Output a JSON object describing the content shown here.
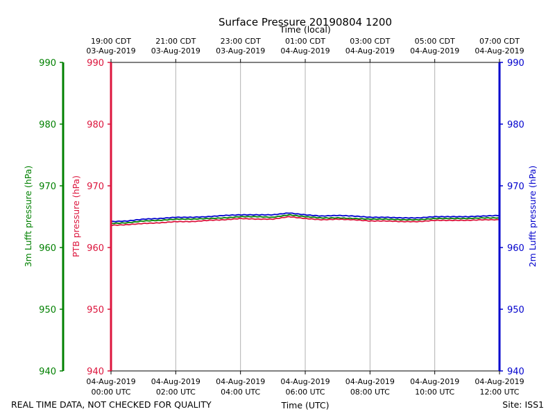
{
  "chart_data": {
    "type": "line",
    "title": "Surface Pressure 20190804 1200",
    "top_axis_label": "Time (local)",
    "x_label": "Time (UTC)",
    "left_outer_label": "3m Lufft pressure (hPa)",
    "left_inner_label": "PTB pressure (hPa)",
    "right_label": "2m Lufft pressure (hPa)",
    "footer_left": "REAL TIME DATA, NOT CHECKED FOR QUALITY",
    "footer_right": "Site: ISS1",
    "ylim": [
      940,
      990
    ],
    "y_ticks": [
      "940",
      "950",
      "960",
      "970",
      "980",
      "990"
    ],
    "xlim_hours": [
      0,
      12
    ],
    "x_ticks": [
      {
        "hour": 0,
        "date": "04-Aug-2019",
        "time": "00:00 UTC"
      },
      {
        "hour": 2,
        "date": "04-Aug-2019",
        "time": "02:00 UTC"
      },
      {
        "hour": 4,
        "date": "04-Aug-2019",
        "time": "04:00 UTC"
      },
      {
        "hour": 6,
        "date": "04-Aug-2019",
        "time": "06:00 UTC"
      },
      {
        "hour": 8,
        "date": "04-Aug-2019",
        "time": "08:00 UTC"
      },
      {
        "hour": 10,
        "date": "04-Aug-2019",
        "time": "10:00 UTC"
      },
      {
        "hour": 12,
        "date": "04-Aug-2019",
        "time": "12:00 UTC"
      }
    ],
    "top_ticks": [
      {
        "hour": 0,
        "time": "19:00 CDT",
        "date": "03-Aug-2019"
      },
      {
        "hour": 2,
        "time": "21:00 CDT",
        "date": "03-Aug-2019"
      },
      {
        "hour": 4,
        "time": "23:00 CDT",
        "date": "03-Aug-2019"
      },
      {
        "hour": 6,
        "time": "01:00 CDT",
        "date": "04-Aug-2019"
      },
      {
        "hour": 8,
        "time": "03:00 CDT",
        "date": "04-Aug-2019"
      },
      {
        "hour": 10,
        "time": "05:00 CDT",
        "date": "04-Aug-2019"
      },
      {
        "hour": 12,
        "time": "07:00 CDT",
        "date": "04-Aug-2019"
      }
    ],
    "colors": {
      "left_outer": "#008000",
      "left_inner": "#dc143c",
      "right": "#0000cd"
    },
    "series": [
      {
        "name": "2m Lufft pressure",
        "color": "#0000cd",
        "x": [
          0,
          0.5,
          1,
          1.5,
          2,
          2.5,
          3,
          3.5,
          4,
          4.5,
          5,
          5.5,
          6,
          6.5,
          7,
          7.5,
          8,
          8.5,
          9,
          9.5,
          10,
          10.5,
          11,
          11.5,
          12
        ],
        "values": [
          964.2,
          964.3,
          964.6,
          964.7,
          964.9,
          964.9,
          965.0,
          965.2,
          965.3,
          965.3,
          965.3,
          965.6,
          965.3,
          965.1,
          965.2,
          965.1,
          964.9,
          964.9,
          964.8,
          964.8,
          965.0,
          965.0,
          965.0,
          965.1,
          965.2
        ]
      },
      {
        "name": "3m Lufft pressure",
        "color": "#008000",
        "x": [
          0,
          0.5,
          1,
          1.5,
          2,
          2.5,
          3,
          3.5,
          4,
          4.5,
          5,
          5.5,
          6,
          6.5,
          7,
          7.5,
          8,
          8.5,
          9,
          9.5,
          10,
          10.5,
          11,
          11.5,
          12
        ],
        "values": [
          963.9,
          964.0,
          964.3,
          964.4,
          964.6,
          964.6,
          964.7,
          964.8,
          965.0,
          965.0,
          964.9,
          965.3,
          965.0,
          964.8,
          964.8,
          964.7,
          964.6,
          964.6,
          964.5,
          964.5,
          964.7,
          964.7,
          964.7,
          964.8,
          964.8
        ]
      },
      {
        "name": "PTB pressure",
        "color": "#dc143c",
        "x": [
          0,
          0.5,
          1,
          1.5,
          2,
          2.5,
          3,
          3.5,
          4,
          4.5,
          5,
          5.5,
          6,
          6.5,
          7,
          7.5,
          8,
          8.5,
          9,
          9.5,
          10,
          10.5,
          11,
          11.5,
          12
        ],
        "values": [
          963.6,
          963.7,
          963.9,
          964.0,
          964.2,
          964.2,
          964.4,
          964.5,
          964.7,
          964.6,
          964.6,
          965.0,
          964.7,
          964.5,
          964.6,
          964.5,
          964.3,
          964.3,
          964.2,
          964.2,
          964.4,
          964.4,
          964.4,
          964.5,
          964.5
        ]
      }
    ]
  }
}
